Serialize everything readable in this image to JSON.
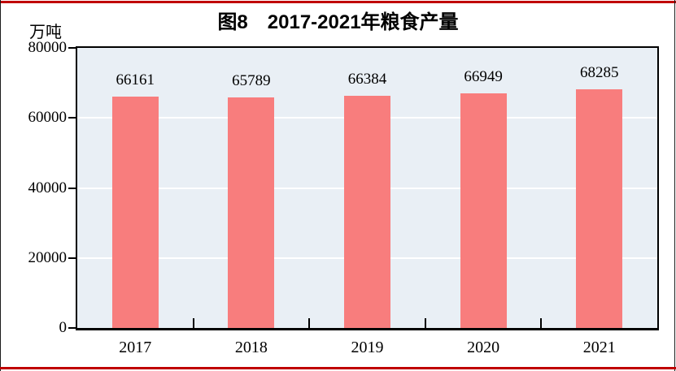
{
  "page": {
    "rule_color": "#c00000",
    "edge_line_color": "#1c1c1c"
  },
  "chart_data": {
    "type": "bar",
    "title": "图8　2017-2021年粮食产量",
    "unit_label": "万吨",
    "categories": [
      "2017",
      "2018",
      "2019",
      "2020",
      "2021"
    ],
    "values": [
      66161,
      65789,
      66384,
      66949,
      68285
    ],
    "value_labels": [
      "66161",
      "65789",
      "66384",
      "66949",
      "68285"
    ],
    "xlabel": "",
    "ylabel": "万吨",
    "ylim": [
      0,
      80000
    ],
    "yticks": [
      0,
      20000,
      40000,
      60000,
      80000
    ],
    "ytick_labels": [
      "0",
      "20000",
      "40000",
      "60000",
      "80000"
    ],
    "grid": true,
    "gridline_color": "#ffffff",
    "legend": "none",
    "bar_color": "#f87d7d",
    "plot_bg": "#e9eff5",
    "axis_color": "#000000"
  }
}
